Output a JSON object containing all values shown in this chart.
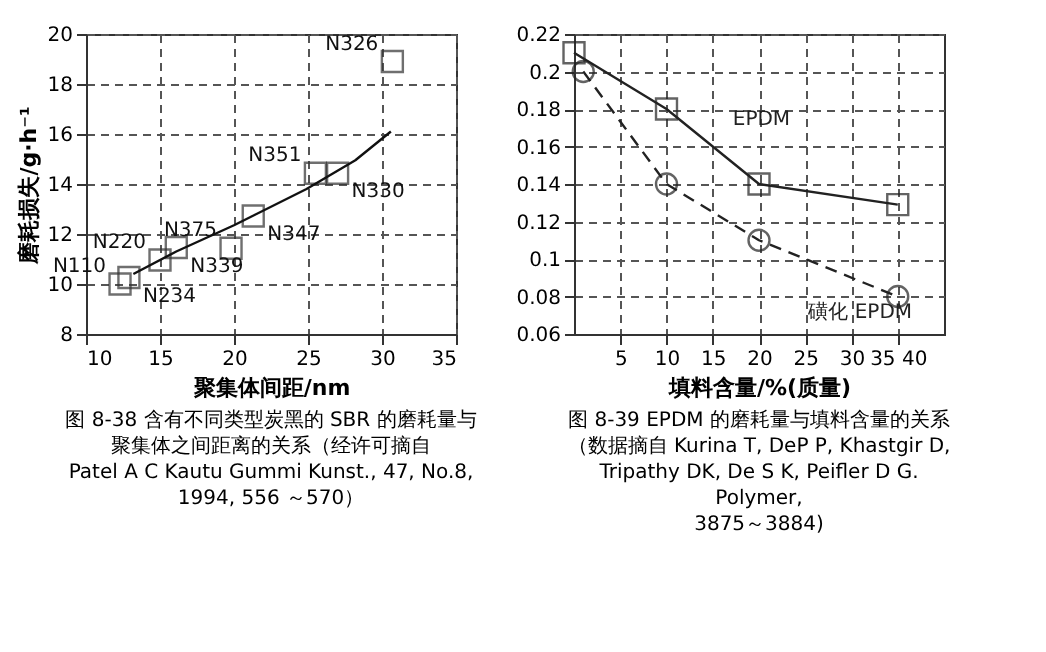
{
  "chart_data": [
    {
      "type": "scatter",
      "title": "图 8-38 含有不同类型炭黑的 SBR 的磨耗量与聚集体之间距离的关系（经许可摘自",
      "xlabel": "聚集体间距/nm",
      "ylabel": "磨耗损失/g·h⁻¹",
      "annotations": [
        "Patel A C Kautu Gummi Kunst., 47, No.8, 1994, 556 ～570）"
      ],
      "xlim": [
        10,
        35
      ],
      "xticks": [
        10,
        15,
        20,
        25,
        30,
        35
      ],
      "ylim": [
        8,
        20
      ],
      "yticks": [
        8,
        10,
        12,
        14,
        16,
        18,
        20
      ],
      "grid": true,
      "marker": "square",
      "series": [
        {
          "color": "#333333",
          "x": [
            12.3,
            12.9,
            15.0,
            16.1,
            19.8,
            21.3,
            25.5,
            27.0,
            30.7
          ],
          "values": [
            10.0,
            10.26,
            10.96,
            11.46,
            11.43,
            12.72,
            14.43,
            14.43,
            18.9
          ],
          "value_labels": [
            "N110",
            "N234",
            "N220",
            "N339",
            "N375",
            "N347",
            "N351",
            "N330",
            "N326"
          ]
        },
        {
          "type": "line",
          "color": "#111111",
          "marker": "none",
          "x": [
            13.2,
            16.1,
            20.0,
            24.9,
            28.2,
            30.6
          ],
          "values": [
            10.4,
            11.3,
            12.35,
            13.8,
            14.95,
            16.1
          ]
        }
      ]
    },
    {
      "type": "line",
      "title": "图 8-39 EPDM 的磨耗量与填料含量的关系",
      "xlabel": "填料含量/%(质量)",
      "annotations": [
        "（数据摘自 Kurina T, DeP P, Khastgir D, Tripathy DK, De S K, Peifler D G. Polymer,",
        "3875～3884)"
      ],
      "xlim": [
        0,
        40
      ],
      "xticks": [
        5,
        10,
        15,
        20,
        25,
        30,
        {
          "value": 35,
          "label": "35 40"
        }
      ],
      "ylim": [
        0.06,
        0.22
      ],
      "yticks": [
        0.06,
        0.08,
        0.1,
        0.12,
        0.14,
        0.16,
        0.18,
        0.2,
        0.22
      ],
      "grid": true,
      "series": [
        {
          "name": "EPDM",
          "color": "#222222",
          "marker": "square",
          "line_style": "solid",
          "x": [
            0,
            10,
            20,
            35
          ],
          "values": [
            0.21,
            0.18,
            0.14,
            0.129
          ]
        },
        {
          "name": "磺化 EPDM",
          "color": "#222222",
          "marker": "circle",
          "line_style": "dashed",
          "x": [
            1,
            10,
            20,
            35
          ],
          "values": [
            0.2,
            0.14,
            0.11,
            0.08
          ]
        }
      ]
    }
  ]
}
